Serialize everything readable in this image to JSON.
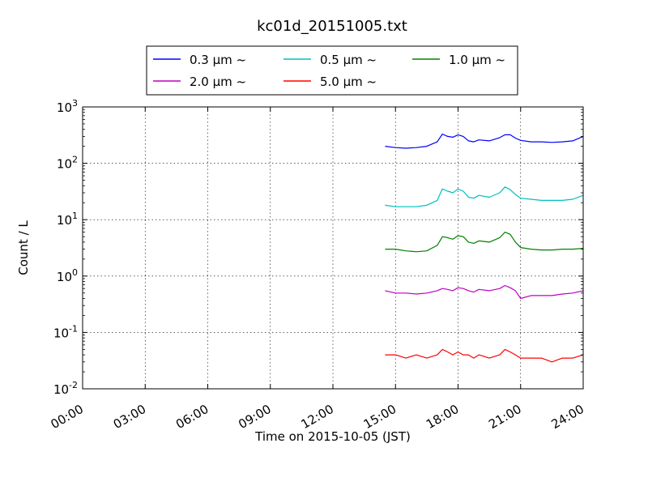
{
  "chart_data": {
    "type": "line",
    "title": "kc01d_20151005.txt",
    "xlabel": "Time on 2015-10-05 (JST)",
    "ylabel": "Count / L",
    "x_unit": "hours",
    "xlim": [
      0,
      24
    ],
    "ylim": [
      0.01,
      1000
    ],
    "yscale": "log",
    "grid": true,
    "legend_position": "upper-center-outside",
    "x_ticks": [
      {
        "value": 0,
        "label": "00:00"
      },
      {
        "value": 3,
        "label": "03:00"
      },
      {
        "value": 6,
        "label": "06:00"
      },
      {
        "value": 9,
        "label": "09:00"
      },
      {
        "value": 12,
        "label": "12:00"
      },
      {
        "value": 15,
        "label": "15:00"
      },
      {
        "value": 18,
        "label": "18:00"
      },
      {
        "value": 21,
        "label": "21:00"
      },
      {
        "value": 24,
        "label": "24:00"
      }
    ],
    "y_ticks": [
      {
        "value": 0.01,
        "base": "10",
        "exp": "-2"
      },
      {
        "value": 0.1,
        "base": "10",
        "exp": "-1"
      },
      {
        "value": 1,
        "base": "10",
        "exp": "0"
      },
      {
        "value": 10,
        "base": "10",
        "exp": "1"
      },
      {
        "value": 100,
        "base": "10",
        "exp": "2"
      },
      {
        "value": 1000,
        "base": "10",
        "exp": "3"
      }
    ],
    "x": [
      14.5,
      15.0,
      15.5,
      16.0,
      16.5,
      17.0,
      17.25,
      17.5,
      17.75,
      18.0,
      18.25,
      18.5,
      18.75,
      19.0,
      19.5,
      20.0,
      20.25,
      20.5,
      20.75,
      21.0,
      21.5,
      22.0,
      22.5,
      23.0,
      23.5,
      24.0
    ],
    "series": [
      {
        "name": "0.3 μm ~",
        "color": "#0000ff",
        "values": [
          200,
          190,
          185,
          190,
          200,
          240,
          330,
          300,
          290,
          320,
          300,
          250,
          240,
          260,
          250,
          285,
          320,
          320,
          280,
          255,
          240,
          240,
          235,
          240,
          250,
          300
        ]
      },
      {
        "name": "0.5 μm ~",
        "color": "#00bfbf",
        "values": [
          18,
          17,
          17,
          17,
          18,
          22,
          35,
          32,
          30,
          35,
          32,
          25,
          24,
          27,
          25,
          30,
          38,
          34,
          28,
          24,
          23,
          22,
          22,
          22,
          23,
          27
        ]
      },
      {
        "name": "1.0 μm ~",
        "color": "#008000",
        "values": [
          3.0,
          3.0,
          2.8,
          2.7,
          2.8,
          3.5,
          5.0,
          4.8,
          4.5,
          5.2,
          5.0,
          4.0,
          3.8,
          4.2,
          4.0,
          4.8,
          6.0,
          5.5,
          4.0,
          3.2,
          3.0,
          2.9,
          2.9,
          3.0,
          3.0,
          3.1
        ]
      },
      {
        "name": "2.0 μm ~",
        "color": "#bf00bf",
        "values": [
          0.55,
          0.5,
          0.5,
          0.48,
          0.5,
          0.55,
          0.6,
          0.58,
          0.55,
          0.62,
          0.6,
          0.55,
          0.52,
          0.58,
          0.55,
          0.6,
          0.68,
          0.62,
          0.55,
          0.4,
          0.45,
          0.45,
          0.45,
          0.48,
          0.5,
          0.55
        ]
      },
      {
        "name": "5.0 μm ~",
        "color": "#ff0000",
        "values": [
          0.04,
          0.04,
          0.035,
          0.04,
          0.035,
          0.04,
          0.05,
          0.045,
          0.04,
          0.045,
          0.04,
          0.04,
          0.035,
          0.04,
          0.035,
          0.04,
          0.05,
          0.045,
          0.04,
          0.035,
          0.035,
          0.035,
          0.03,
          0.035,
          0.035,
          0.04
        ]
      }
    ]
  }
}
